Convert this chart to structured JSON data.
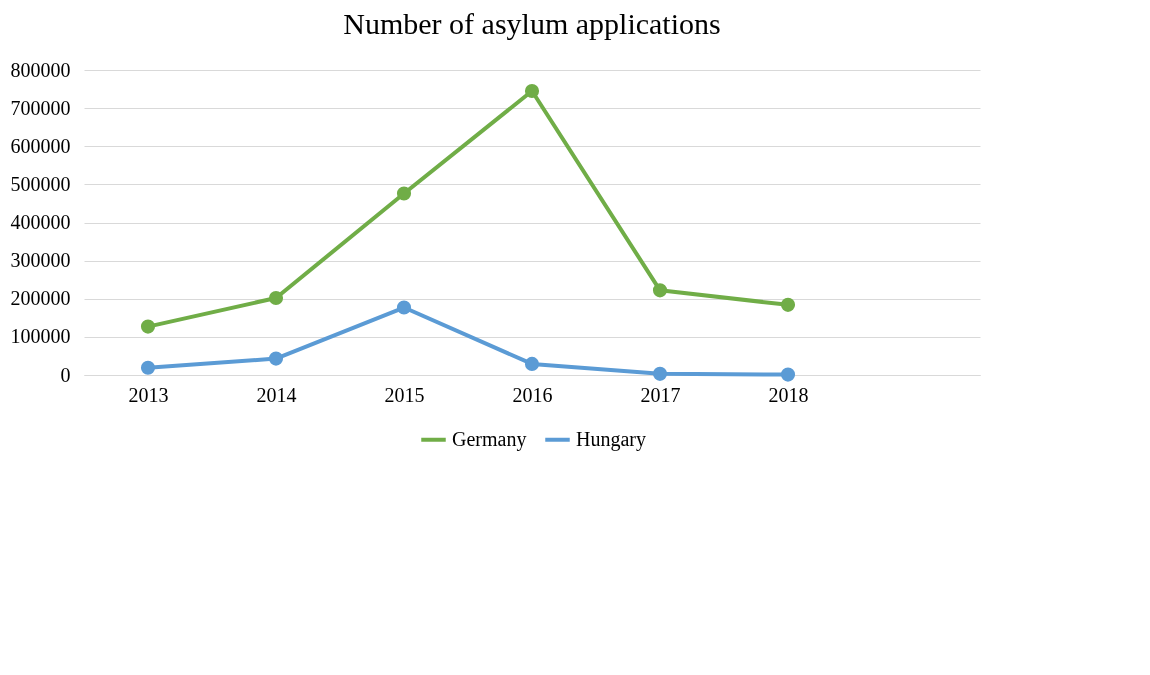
{
  "chart_data": {
    "type": "line",
    "title": "Number of asylum applications",
    "categories": [
      "2013",
      "2014",
      "2015",
      "2016",
      "2017",
      "2018",
      null
    ],
    "series": [
      {
        "name": "Germany",
        "color": "#70ad47",
        "values": [
          127000,
          202000,
          476000,
          745000,
          222000,
          184000,
          null
        ]
      },
      {
        "name": "Hungary",
        "color": "#5b9bd5",
        "values": [
          19000,
          43000,
          177000,
          29000,
          3000,
          1000,
          null
        ]
      }
    ],
    "ylim": [
      0,
      800000
    ],
    "yticks": [
      0,
      100000,
      200000,
      300000,
      400000,
      500000,
      600000,
      700000,
      800000
    ],
    "grid": "y",
    "legend": "bottom",
    "marker": "circle",
    "line_style": "solid"
  }
}
